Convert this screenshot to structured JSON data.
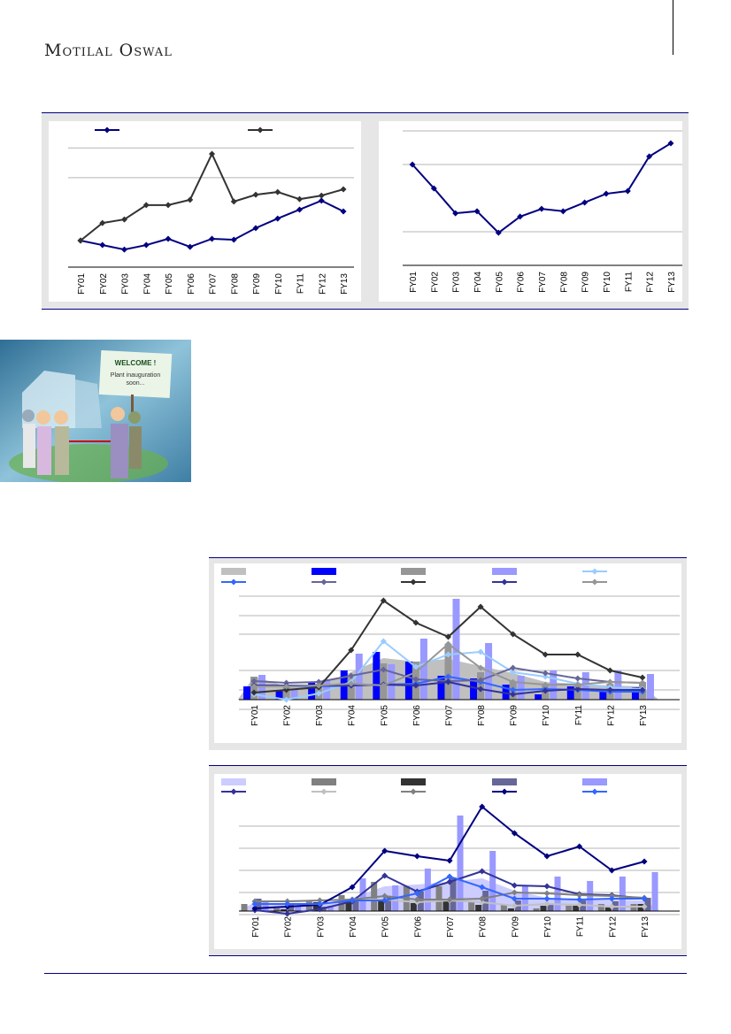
{
  "header": {
    "brand": "Motilal Oswal"
  },
  "illustration": {
    "sign_title": "WELCOME !",
    "sign_text_1": "Plant inauguration",
    "sign_text_2": "soon..."
  },
  "colors": {
    "accent": "#000080",
    "panel": "#e6e6e6"
  },
  "chart_data": [
    {
      "type": "line",
      "categories": [
        "FY01",
        "FY02",
        "FY03",
        "FY04",
        "FY05",
        "FY06",
        "FY07",
        "FY08",
        "FY09",
        "FY10",
        "FY11",
        "FY12",
        "FY13"
      ],
      "ylim": [
        0,
        4.66
      ],
      "gridlines": [
        3,
        4
      ],
      "legend": "top",
      "series": [
        {
          "kind": "line",
          "color": "#000080",
          "values": [
            0.89,
            0.74,
            0.59,
            0.74,
            0.95,
            0.68,
            0.95,
            0.92,
            1.31,
            1.63,
            1.93,
            2.23,
            1.87
          ]
        },
        {
          "kind": "line",
          "color": "#333333",
          "values": [
            0.89,
            1.48,
            1.6,
            2.08,
            2.08,
            2.26,
            3.8,
            2.2,
            2.43,
            2.52,
            2.28,
            2.4,
            2.61
          ]
        }
      ]
    },
    {
      "type": "line",
      "categories": [
        "FY01",
        "FY02",
        "FY03",
        "FY04",
        "FY05",
        "FY06",
        "FY07",
        "FY08",
        "FY09",
        "FY10",
        "FY11",
        "FY12",
        "FY13"
      ],
      "ylim": [
        0,
        4
      ],
      "gridlines": [
        1,
        3,
        4
      ],
      "legend": "none",
      "series": [
        {
          "kind": "line",
          "color": "#000080",
          "values": [
            3.0,
            2.29,
            1.55,
            1.61,
            0.97,
            1.45,
            1.68,
            1.61,
            1.87,
            2.13,
            2.21,
            3.24,
            3.63
          ]
        }
      ]
    },
    {
      "type": "bar",
      "categories": [
        "FY01",
        "FY02",
        "FY03",
        "FY04",
        "FY05",
        "FY06",
        "FY07",
        "FY08",
        "FY09",
        "FY10",
        "FY11",
        "FY12",
        "FY13"
      ],
      "ylim": [
        -12,
        120
      ],
      "gridlines": [
        -11,
        11,
        33,
        74,
        95,
        117
      ],
      "legend": "top",
      "series": [
        {
          "kind": "area",
          "color": "#c0c0c0",
          "values": [
            26,
            15,
            16,
            31,
            47,
            43,
            46,
            38,
            30,
            20,
            18,
            16,
            15
          ]
        },
        {
          "kind": "bar",
          "color": "#0000ff",
          "values": [
            15,
            10,
            19,
            33,
            54,
            43,
            27,
            24,
            17,
            6,
            15,
            10,
            14
          ]
        },
        {
          "kind": "bar",
          "color": "#969696",
          "values": [
            26,
            15,
            18,
            25,
            41,
            43,
            63,
            31,
            21,
            18,
            18,
            18,
            20
          ]
        },
        {
          "kind": "bar",
          "color": "#9999ff",
          "values": [
            28,
            11,
            23,
            52,
            40,
            69,
            114,
            64,
            27,
            33,
            31,
            33,
            29
          ]
        },
        {
          "kind": "line",
          "color": "#99ccff",
          "values": [
            6,
            0,
            7,
            20,
            66,
            37,
            51,
            54,
            31,
            26,
            18,
            14,
            12
          ]
        },
        {
          "kind": "line",
          "color": "#3366ff",
          "values": [
            15,
            15,
            15,
            16,
            17,
            18,
            26,
            20,
            11,
            12,
            11,
            9,
            9
          ]
        },
        {
          "kind": "line",
          "color": "#666699",
          "values": [
            21,
            19,
            20,
            27,
            34,
            23,
            21,
            22,
            36,
            30,
            24,
            20,
            19
          ]
        },
        {
          "kind": "line",
          "color": "#333333",
          "values": [
            8,
            11,
            14,
            56,
            112,
            87,
            71,
            105,
            74,
            51,
            51,
            33,
            25
          ]
        },
        {
          "kind": "line",
          "color": "#333399",
          "values": [
            16,
            16,
            16,
            16,
            17,
            16,
            20,
            12,
            6,
            10,
            12,
            11,
            11
          ]
        },
        {
          "kind": "line",
          "color": "#969696",
          "values": [
            15,
            15,
            16,
            18,
            16,
            31,
            63,
            36,
            20,
            17,
            17,
            20,
            19
          ]
        }
      ]
    },
    {
      "type": "bar",
      "categories": [
        "FY01",
        "FY02",
        "FY03",
        "FY04",
        "FY05",
        "FY06",
        "FY07",
        "FY08",
        "FY09",
        "FY10",
        "FY11",
        "FY12",
        "FY13"
      ],
      "ylim": [
        -6,
        120
      ],
      "gridlines": [
        -4,
        21,
        46,
        71,
        96
      ],
      "legend": "top",
      "series": [
        {
          "kind": "area",
          "color": "#ccccff",
          "values": [
            10,
            8,
            8,
            15,
            28,
            30,
            33,
            37,
            23,
            15,
            13,
            13,
            12
          ]
        },
        {
          "kind": "bar",
          "color": "#808080",
          "values": [
            8,
            3,
            12,
            18,
            33,
            28,
            28,
            10,
            7,
            3,
            6,
            8,
            8
          ]
        },
        {
          "kind": "bar",
          "color": "#333333",
          "values": [
            0,
            2,
            10,
            11,
            11,
            9,
            11,
            7,
            3,
            6,
            6,
            4,
            8
          ]
        },
        {
          "kind": "bar",
          "color": "#666699",
          "values": [
            14,
            8,
            5,
            13,
            16,
            22,
            38,
            23,
            12,
            8,
            12,
            11,
            15
          ]
        },
        {
          "kind": "bar",
          "color": "#9999ff",
          "values": [
            12,
            5,
            6,
            37,
            29,
            48,
            108,
            68,
            28,
            39,
            34,
            39,
            44
          ]
        },
        {
          "kind": "line",
          "color": "#333399",
          "values": [
            1,
            -3,
            2,
            11,
            40,
            22,
            33,
            45,
            29,
            28,
            19,
            18,
            14
          ]
        },
        {
          "kind": "line",
          "color": "#c0c0c0",
          "values": [
            11,
            11,
            12,
            13,
            13,
            10,
            12,
            10,
            6,
            8,
            7,
            5,
            5
          ]
        },
        {
          "kind": "line",
          "color": "#808080",
          "values": [
            11,
            11,
            12,
            13,
            17,
            13,
            13,
            14,
            21,
            20,
            18,
            17,
            15
          ]
        },
        {
          "kind": "line",
          "color": "#000080",
          "values": [
            3,
            5,
            7,
            27,
            68,
            62,
            57,
            118,
            88,
            62,
            73,
            46,
            56
          ]
        },
        {
          "kind": "line",
          "color": "#3366ff",
          "values": [
            8,
            8,
            8,
            12,
            12,
            20,
            39,
            27,
            14,
            14,
            13,
            14,
            14
          ]
        }
      ]
    }
  ]
}
